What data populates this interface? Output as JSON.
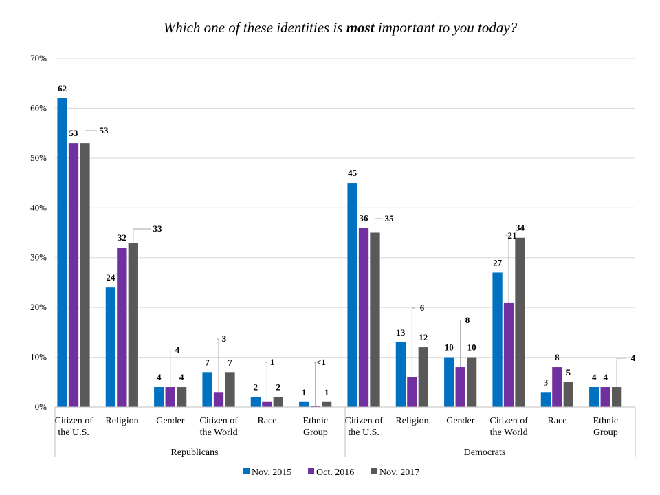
{
  "chart_data": {
    "type": "bar",
    "title_pre": "Which one of these identities is ",
    "title_bold": "most",
    "title_post": " important to you today?",
    "ylim": [
      0,
      70
    ],
    "yticks": [
      "0%",
      "10%",
      "20%",
      "30%",
      "40%",
      "50%",
      "60%",
      "70%"
    ],
    "grid": true,
    "legend_position": "bottom",
    "groups": [
      {
        "name": "Republicans",
        "categories": [
          {
            "label": [
              "Citizen of",
              "the U.S."
            ],
            "values": [
              62,
              53,
              53
            ],
            "labels": [
              "62",
              "53",
              "53"
            ]
          },
          {
            "label": [
              "Religion"
            ],
            "values": [
              24,
              32,
              33
            ],
            "labels": [
              "24",
              "32",
              "33"
            ]
          },
          {
            "label": [
              "Gender"
            ],
            "values": [
              4,
              4,
              4
            ],
            "labels": [
              "4",
              "4",
              "4"
            ]
          },
          {
            "label": [
              "Citizen of",
              "the World"
            ],
            "values": [
              7,
              3,
              7
            ],
            "labels": [
              "7",
              "3",
              "7"
            ]
          },
          {
            "label": [
              "Race"
            ],
            "values": [
              2,
              1,
              2
            ],
            "labels": [
              "2",
              "1",
              "2"
            ]
          },
          {
            "label": [
              "Ethnic",
              "Group"
            ],
            "values": [
              1,
              0.2,
              1
            ],
            "labels": [
              "1",
              "<1",
              "1"
            ]
          }
        ]
      },
      {
        "name": "Democrats",
        "categories": [
          {
            "label": [
              "Citizen of",
              "the U.S."
            ],
            "values": [
              45,
              36,
              35
            ],
            "labels": [
              "45",
              "36",
              "35"
            ]
          },
          {
            "label": [
              "Religion"
            ],
            "values": [
              13,
              6,
              12
            ],
            "labels": [
              "13",
              "6",
              "12"
            ]
          },
          {
            "label": [
              "Gender"
            ],
            "values": [
              10,
              8,
              10
            ],
            "labels": [
              "10",
              "8",
              "10"
            ]
          },
          {
            "label": [
              "Citizen of",
              "the World"
            ],
            "values": [
              27,
              21,
              34
            ],
            "labels": [
              "27",
              "21",
              "34"
            ]
          },
          {
            "label": [
              "Race"
            ],
            "values": [
              3,
              8,
              5
            ],
            "labels": [
              "3",
              "8",
              "5"
            ]
          },
          {
            "label": [
              "Ethnic",
              "Group"
            ],
            "values": [
              4,
              4,
              4
            ],
            "labels": [
              "4",
              "4",
              "4"
            ]
          }
        ]
      }
    ],
    "series": [
      {
        "name": "Nov. 2015",
        "color": "#0070c0"
      },
      {
        "name": "Oct. 2016",
        "color": "#7030a0"
      },
      {
        "name": "Nov. 2017",
        "color": "#595959"
      }
    ]
  }
}
